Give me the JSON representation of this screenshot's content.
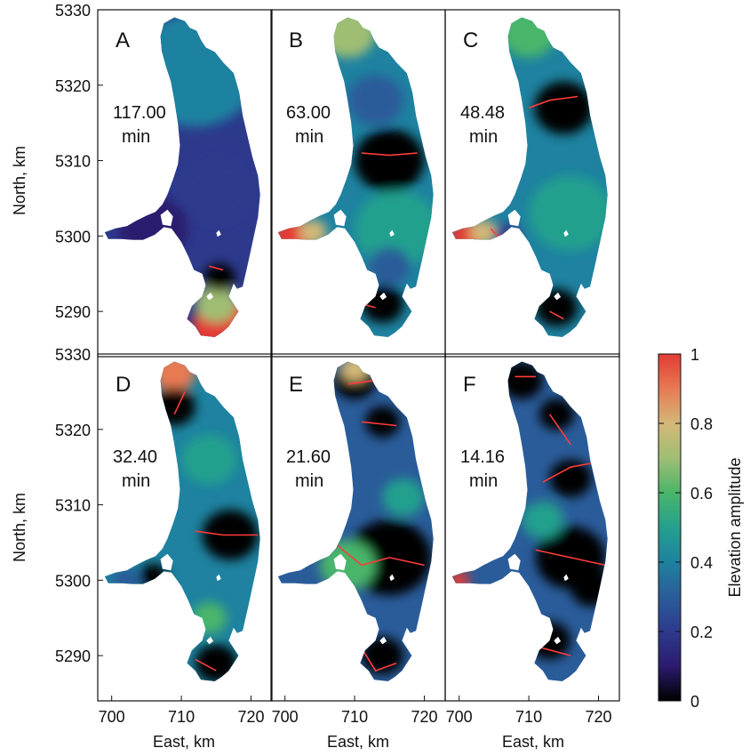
{
  "chart_data": {
    "type": "heatmap",
    "panel_rows": [
      [
        "A",
        "B",
        "C"
      ],
      [
        "D",
        "E",
        "F"
      ]
    ],
    "panels": [
      {
        "letter": "A",
        "period_value": "117.00",
        "period_unit": "min",
        "low_region": "south",
        "high_region": "south-basin"
      },
      {
        "letter": "B",
        "period_value": "63.00",
        "period_unit": "min",
        "low_region": "mid",
        "high_region": "north-west"
      },
      {
        "letter": "C",
        "period_value": "48.48",
        "period_unit": "min",
        "low_region": "north-mid",
        "high_region": "west-arm"
      },
      {
        "letter": "D",
        "period_value": "32.40",
        "period_unit": "min",
        "low_region": "north-mid",
        "high_region": "north-tip"
      },
      {
        "letter": "E",
        "period_value": "21.60",
        "period_unit": "min",
        "low_region": "multiple",
        "high_region": "north-tip"
      },
      {
        "letter": "F",
        "period_value": "14.16",
        "period_unit": "min",
        "low_region": "multiple",
        "high_region": "scattered"
      }
    ],
    "xlabel": "East, km",
    "ylabel": "North, km",
    "xlim": [
      698,
      723
    ],
    "ylim": [
      5284,
      5330
    ],
    "x_ticks": [
      700,
      710,
      720
    ],
    "y_tick_labels": [
      "5290",
      "5300",
      "5310",
      "5320",
      "5330"
    ],
    "colorbar": {
      "label": "Elevation amplitude",
      "range": [
        0,
        1
      ],
      "ticks": [
        "0",
        "0.2",
        "0.4",
        "0.6",
        "0.8",
        "1"
      ],
      "colors": [
        "#000000",
        "#2b1b6e",
        "#2d3a8c",
        "#2a5c9a",
        "#1e82a0",
        "#24a08e",
        "#4ab56a",
        "#9fbe73",
        "#d4b878",
        "#e77a52",
        "#e33b34"
      ]
    },
    "nodal_line_color": "#ff3b3b",
    "grid": false,
    "legend": "colorbar-right"
  }
}
